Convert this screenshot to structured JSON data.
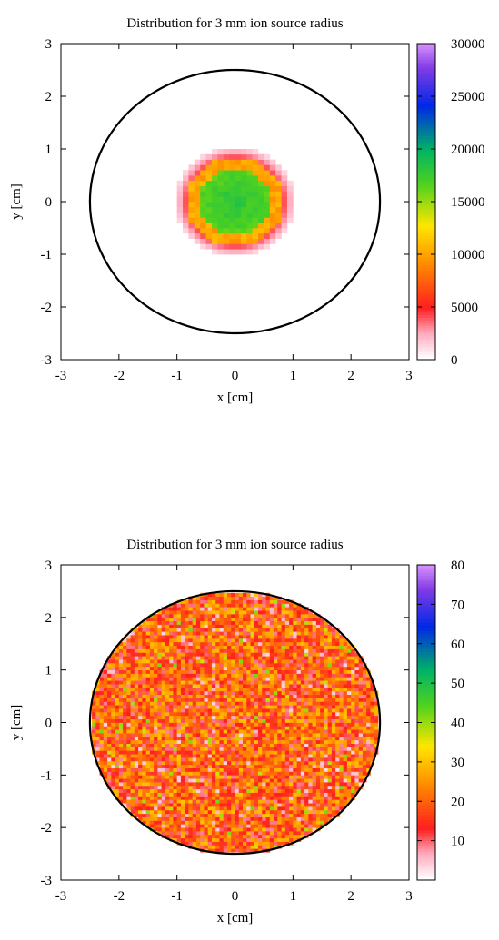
{
  "chart_data": [
    {
      "type": "heatmap",
      "title": "Distribution for 3 mm ion source radius",
      "xlabel": "x [cm]",
      "ylabel": "y [cm]",
      "xlim": [
        -3,
        3
      ],
      "ylim": [
        -3,
        3
      ],
      "x_ticks": [
        "-3",
        "-2",
        "-1",
        "0",
        "1",
        "2",
        "3"
      ],
      "y_ticks": [
        "-3",
        "-2",
        "-1",
        "0",
        "1",
        "2",
        "3"
      ],
      "colorbar": {
        "min": 0,
        "max": 30000,
        "ticks": [
          "0",
          "5000",
          "10000",
          "15000",
          "20000",
          "25000",
          "30000"
        ],
        "tick_values": [
          0,
          5000,
          10000,
          15000,
          20000,
          25000,
          30000
        ]
      },
      "boundary_circle_radius": 2.5,
      "distribution": {
        "kind": "gaussian-spot",
        "center": [
          0,
          0
        ],
        "peak_value": 18000,
        "spot_radius": 1.0
      },
      "grid": false,
      "legend": "colorbar-right"
    },
    {
      "type": "heatmap",
      "title": "Distribution for 3 mm ion source radius",
      "xlabel": "x [cm]",
      "ylabel": "y [cm]",
      "xlim": [
        -3,
        3
      ],
      "ylim": [
        -3,
        3
      ],
      "x_ticks": [
        "-3",
        "-2",
        "-1",
        "0",
        "1",
        "2",
        "3"
      ],
      "y_ticks": [
        "-3",
        "-2",
        "-1",
        "0",
        "1",
        "2",
        "3"
      ],
      "colorbar": {
        "min": 0,
        "max": 80,
        "ticks": [
          "10",
          "20",
          "30",
          "40",
          "50",
          "60",
          "70",
          "80"
        ],
        "tick_values": [
          10,
          20,
          30,
          40,
          50,
          60,
          70,
          80
        ]
      },
      "boundary_circle_radius": 2.5,
      "distribution": {
        "kind": "uniform-noise-disk",
        "center": [
          0,
          0
        ],
        "disk_radius": 2.5,
        "mean_value": 20,
        "max_value": 40
      },
      "grid": false,
      "legend": "colorbar-right"
    }
  ]
}
